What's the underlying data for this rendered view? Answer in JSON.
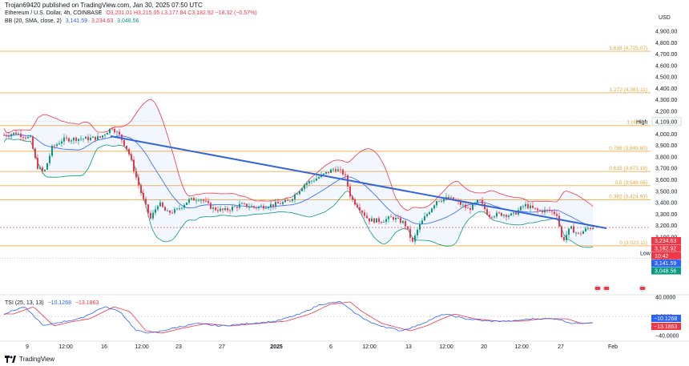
{
  "header": {
    "publisher": "Trojan69420 published on TradingView.com, Jan 30, 2025 07:50 UTC"
  },
  "legend": {
    "symbol": "Ethereum / U.S. Dollar, 4h, COINBASE",
    "ohlc": "O3,201.01  H3,215.05  L3,177.84  C3,182.92  −18.32 (−0.57%)",
    "bb_name": "BB (20, SMA, close, 2)",
    "bb_values": [
      "3,141.59",
      "3,234.63",
      "3,048.56"
    ]
  },
  "price_axis": {
    "currency": "USD",
    "ticks": [
      "4,900.00",
      "4,800.00",
      "4,700.00",
      "4,600.00",
      "4,500.00",
      "4,400.00",
      "4,300.00",
      "4,200.00",
      "4,100.00",
      "4,000.00",
      "3,900.00",
      "3,800.00",
      "3,700.00",
      "3,600.00",
      "3,500.00",
      "3,400.00",
      "3,300.00",
      "3,200.00",
      "3,100.00",
      "3,000.00",
      "2,900.00"
    ],
    "high_label": "High",
    "high_value": "4,109.00",
    "low_label": "Low",
    "low_value": "2,913.75",
    "badges": [
      {
        "text": "3,234.63",
        "color": "#f23645"
      },
      {
        "text": "3,182.92",
        "color": "#f23645"
      },
      {
        "text": "10:42",
        "color": "#f23645"
      },
      {
        "text": "3,141.59",
        "color": "#2962ff"
      },
      {
        "text": "3,048.56",
        "color": "#089981"
      }
    ]
  },
  "fib_levels": [
    {
      "label": "1.618 (4,725.07)",
      "price": 4725
    },
    {
      "label": "1.272 (4,361.11)",
      "price": 4361
    },
    {
      "label": "1 (4,07...",
      "price": 4075
    },
    {
      "label": "0.786 (3,849.80)",
      "price": 3850
    },
    {
      "label": "0.618 (3,673.18)",
      "price": 3673
    },
    {
      "label": "0.5 (3,549.06)",
      "price": 3549
    },
    {
      "label": "0.382 (3,424.93)",
      "price": 3425
    },
    {
      "label": "0 (3,023.11)",
      "price": 3023
    }
  ],
  "time_axis": [
    "9",
    "12:00",
    "16",
    "12:00",
    "23",
    "27",
    "2025",
    "6",
    "12:00",
    "13",
    "12:00",
    "20",
    "12:00",
    "27",
    "Feb"
  ],
  "tsi": {
    "name": "TSI (25, 13, 13)",
    "values": [
      "−10.1268",
      "−13.1863"
    ],
    "ticks": [
      "40.0000",
      "0.0000",
      "−40.0000"
    ],
    "badges": [
      {
        "text": "−10.1268",
        "color": "#2962ff"
      },
      {
        "text": "−13.1863",
        "color": "#f23645"
      }
    ]
  },
  "footer": {
    "brand": "TradingView"
  },
  "colors": {
    "up": "#089981",
    "down": "#f23645",
    "trend": "#3465d8",
    "fib": "#f5b85a"
  }
}
